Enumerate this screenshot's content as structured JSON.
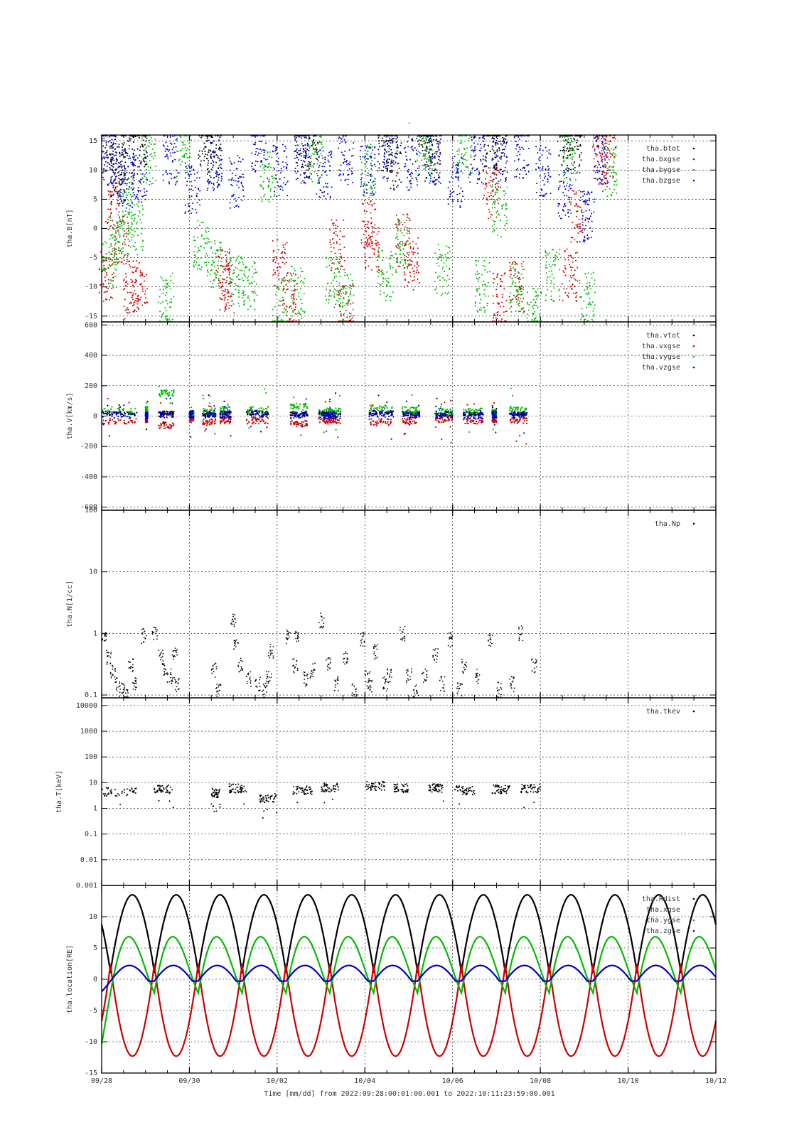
{
  "figure": {
    "title": "-",
    "footer": "Time [mm/dd]  from 2022:09:28:00:01:00.001  to  2022:10:11:23:59:00.001"
  },
  "chart_data": [
    {
      "type": "scatter",
      "ylabel": "tha.B[nT]",
      "ylim": [
        -16,
        16
      ],
      "yticks": [
        "15",
        "10",
        "5",
        "0",
        "-5",
        "-10",
        "-15"
      ],
      "ytick_values": [
        15,
        10,
        5,
        0,
        -5,
        -10,
        -15
      ],
      "legend_position": "top-right",
      "series": [
        {
          "name": "tha.btot",
          "color": "#000000",
          "x": [
            0.1,
            0.3,
            0.5,
            0.8,
            2.3,
            2.5,
            4.5,
            4.7,
            6.4,
            6.6,
            7.3,
            7.5,
            8.8,
            9.0,
            10.5,
            10.7
          ],
          "values": [
            14,
            9,
            13,
            15,
            15,
            12,
            15,
            13,
            14,
            11,
            15,
            12,
            15,
            13,
            15,
            14
          ]
        },
        {
          "name": "tha.bxgse",
          "color": "#cc0000",
          "x": [
            0.05,
            0.2,
            0.4,
            0.6,
            0.8,
            2.7,
            2.8,
            4.0,
            4.2,
            5.3,
            5.5,
            6.0,
            6.1,
            6.8,
            7.0,
            8.8,
            9.0,
            9.4,
            10.6,
            10.8,
            11.3,
            11.5
          ],
          "values": [
            -8,
            4,
            -2,
            -11,
            -10,
            -8,
            -10,
            -6,
            -12,
            -3,
            -14,
            1,
            -3,
            -2,
            -6,
            6,
            -12,
            -10,
            -8,
            2,
            12,
            13
          ]
        },
        {
          "name": "tha.bygse",
          "color": "#00bb00",
          "x": [
            0.1,
            0.3,
            0.5,
            0.7,
            1.0,
            1.4,
            1.8,
            2.2,
            2.5,
            3.0,
            3.3,
            3.7,
            4.0,
            4.4,
            4.8,
            5.2,
            5.5,
            6.0,
            6.4,
            6.8,
            7.3,
            7.7,
            8.2,
            8.6,
            9.0,
            9.4,
            9.8,
            10.2,
            10.6,
            11.0,
            11.5
          ],
          "values": [
            -6,
            -2,
            4,
            0,
            12,
            -12,
            13,
            -3,
            -6,
            -9,
            -10,
            9,
            -13,
            -11,
            12,
            -9,
            -12,
            10,
            -8,
            -3,
            12,
            -7,
            13,
            -10,
            3,
            -10,
            -14,
            -8,
            12,
            -12,
            10
          ]
        },
        {
          "name": "tha.bzgse",
          "color": "#0000cc",
          "x": [
            0.1,
            0.3,
            0.5,
            0.8,
            1.5,
            2.0,
            2.5,
            3.0,
            3.5,
            4.0,
            4.5,
            5.0,
            5.5,
            6.0,
            6.5,
            7.0,
            7.5,
            8.0,
            8.5,
            9.0,
            9.5,
            10.0,
            10.5,
            11.0,
            11.3
          ],
          "values": [
            12,
            10,
            8,
            9,
            12,
            7,
            11,
            8,
            14,
            10,
            12,
            9,
            12,
            10,
            13,
            11,
            12,
            8,
            12,
            11,
            13,
            10,
            6,
            2,
            12
          ]
        }
      ]
    },
    {
      "type": "scatter",
      "ylabel": "tha.V[km/s]",
      "ylim": [
        -620,
        620
      ],
      "yticks": [
        "600",
        "400",
        "200",
        "0",
        "-200",
        "-400",
        "-600"
      ],
      "ytick_values": [
        600,
        400,
        200,
        0,
        -200,
        -400,
        -600
      ],
      "legend_position": "top-right",
      "segments": [
        [
          0.0,
          0.8
        ],
        [
          1.0,
          1.05
        ],
        [
          1.3,
          1.65
        ],
        [
          2.0,
          2.1
        ],
        [
          2.3,
          2.6
        ],
        [
          2.7,
          2.95
        ],
        [
          3.3,
          3.8
        ],
        [
          4.3,
          4.7
        ],
        [
          4.95,
          5.45
        ],
        [
          5.05,
          5.35
        ],
        [
          6.1,
          6.65
        ],
        [
          6.85,
          7.25
        ],
        [
          7.6,
          8.0
        ],
        [
          8.25,
          8.7
        ],
        [
          8.9,
          9.0
        ],
        [
          9.3,
          9.7
        ]
      ],
      "series": [
        {
          "name": "tha.vtot",
          "color": "#000000",
          "values": [
            20,
            15,
            20,
            25,
            10,
            20,
            20,
            15,
            20,
            15,
            20,
            15,
            10,
            15,
            20,
            15
          ]
        },
        {
          "name": "tha.vxgse",
          "color": "#cc0000",
          "values": [
            -30,
            -20,
            -60,
            -10,
            -40,
            -30,
            -30,
            -50,
            -30,
            -20,
            -40,
            -30,
            -20,
            -30,
            -20,
            -30
          ]
        },
        {
          "name": "tha.vygse",
          "color": "#00bb00",
          "values": [
            30,
            40,
            150,
            10,
            30,
            40,
            40,
            60,
            30,
            20,
            50,
            40,
            30,
            30,
            20,
            40
          ]
        },
        {
          "name": "tha.vzgse",
          "color": "#0000cc",
          "values": [
            10,
            5,
            10,
            10,
            15,
            10,
            15,
            10,
            10,
            5,
            15,
            10,
            10,
            5,
            10,
            10
          ]
        }
      ]
    },
    {
      "type": "scatter",
      "ylabel": "tha.N[1/cc]",
      "scale": "log",
      "ylim": [
        0.09,
        100
      ],
      "yticks": [
        "100",
        "10",
        "1",
        "0.1"
      ],
      "ytick_values": [
        100,
        10,
        1,
        0.1
      ],
      "legend_position": "top-right",
      "series": [
        {
          "name": "tha.Np",
          "color": "#000000",
          "x": [
            0.0,
            0.1,
            0.2,
            0.3,
            0.4,
            0.5,
            0.6,
            0.7,
            0.9,
            1.15,
            1.3,
            1.4,
            1.5,
            1.6,
            1.65,
            2.5,
            2.6,
            2.95,
            3.0,
            3.1,
            3.3,
            3.5,
            3.65,
            3.75,
            3.8,
            4.2,
            4.35,
            4.4,
            4.6,
            4.75,
            4.95,
            5.1,
            5.3,
            5.5,
            5.7,
            5.9,
            6.0,
            6.05,
            6.2,
            6.4,
            6.5,
            6.8,
            6.95,
            7.1,
            7.3,
            7.55,
            7.7,
            7.9,
            8.1,
            8.2,
            8.5,
            8.8,
            9.0,
            9.3,
            9.5,
            9.8
          ],
          "values": [
            1.0,
            0.4,
            0.25,
            0.15,
            0.12,
            0.1,
            0.3,
            0.15,
            0.9,
            1.0,
            0.4,
            0.25,
            0.2,
            0.5,
            0.15,
            0.25,
            0.12,
            1.6,
            0.6,
            0.3,
            0.18,
            0.15,
            0.12,
            0.2,
            0.5,
            0.9,
            0.3,
            0.9,
            0.18,
            0.25,
            1.6,
            0.3,
            0.15,
            0.4,
            0.12,
            0.8,
            0.2,
            0.15,
            0.5,
            0.15,
            0.2,
            1.0,
            0.2,
            0.12,
            0.2,
            0.45,
            0.15,
            0.8,
            0.12,
            0.3,
            0.2,
            0.8,
            0.12,
            0.15,
            1.0,
            0.3
          ]
        }
      ]
    },
    {
      "type": "scatter",
      "ylabel": "tha.T[keV]",
      "scale": "log",
      "ylim": [
        0.001,
        20000
      ],
      "yticks": [
        "10000",
        "1000",
        "100",
        "10",
        "1",
        "0.1",
        "0.01",
        "0.001"
      ],
      "ytick_values": [
        10000,
        1000,
        100,
        10,
        1,
        0.1,
        0.01,
        0.001
      ],
      "legend_position": "top-right",
      "series": [
        {
          "name": "tha.tkev",
          "color": "#000000",
          "segments": [
            [
              0.0,
              0.8
            ],
            [
              1.2,
              1.65
            ],
            [
              2.5,
              2.7
            ],
            [
              2.9,
              3.3
            ],
            [
              3.6,
              4.0
            ],
            [
              4.35,
              4.8
            ],
            [
              5.0,
              5.4
            ],
            [
              6.0,
              6.45
            ],
            [
              6.65,
              7.0
            ],
            [
              7.45,
              7.8
            ],
            [
              8.05,
              8.5
            ],
            [
              8.9,
              9.3
            ],
            [
              9.55,
              10.0
            ]
          ],
          "values": [
            4.5,
            5.5,
            4,
            6,
            2.5,
            5,
            6.5,
            7.5,
            6,
            6,
            5,
            5.5,
            6
          ]
        }
      ]
    },
    {
      "type": "line",
      "ylabel": "tha.location[RE]",
      "ylim": [
        -15,
        15
      ],
      "yticks": [
        "10",
        "5",
        "0",
        "-5",
        "-10",
        "-15"
      ],
      "ytick_values": [
        10,
        5,
        0,
        -5,
        -10,
        -15
      ],
      "legend_position": "top-right",
      "orbit_period_days": 1.0,
      "series": [
        {
          "name": "tha.Rdist",
          "color": "#000000",
          "min": 1.0,
          "max": 13.5
        },
        {
          "name": "tha.xgse",
          "color": "#cc0000",
          "min": -12.3,
          "max": 2.5
        },
        {
          "name": "tha.ygse",
          "color": "#00bb00",
          "min": -2.2,
          "max": 7.0
        },
        {
          "name": "tha.zgse",
          "color": "#0000cc",
          "min": -0.3,
          "max": 2.2
        }
      ]
    }
  ],
  "x_axis": {
    "range_days": [
      0,
      14
    ],
    "tick_labels": [
      "09/28",
      "09/30",
      "10/02",
      "10/04",
      "10/06",
      "10/08",
      "10/10",
      "10/12"
    ],
    "tick_days": [
      0,
      2,
      4,
      6,
      8,
      10,
      12,
      14
    ]
  }
}
